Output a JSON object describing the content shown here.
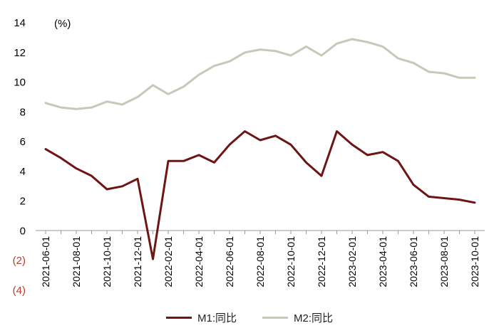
{
  "chart_data": {
    "type": "line",
    "unit_label": "(%)",
    "x": [
      "2021-06-01",
      "2021-07-01",
      "2021-08-01",
      "2021-09-01",
      "2021-10-01",
      "2021-11-01",
      "2021-12-01",
      "2022-01-01",
      "2022-02-01",
      "2022-03-01",
      "2022-04-01",
      "2022-05-01",
      "2022-06-01",
      "2022-07-01",
      "2022-08-01",
      "2022-09-01",
      "2022-10-01",
      "2022-11-01",
      "2022-12-01",
      "2023-01-01",
      "2023-02-01",
      "2023-03-01",
      "2023-04-01",
      "2023-05-01",
      "2023-06-01",
      "2023-07-01",
      "2023-08-01",
      "2023-09-01",
      "2023-10-01"
    ],
    "xtick_labels": [
      "2021-06-01",
      "2021-08-01",
      "2021-10-01",
      "2021-12-01",
      "2022-02-01",
      "2022-04-01",
      "2022-06-01",
      "2022-08-01",
      "2022-10-01",
      "2022-12-01",
      "2023-02-01",
      "2023-04-01",
      "2023-06-01",
      "2023-08-01",
      "2023-10-01"
    ],
    "yticks": [
      {
        "value": 14,
        "label": "14"
      },
      {
        "value": 12,
        "label": "12"
      },
      {
        "value": 10,
        "label": "10"
      },
      {
        "value": 8,
        "label": "8"
      },
      {
        "value": 6,
        "label": "6"
      },
      {
        "value": 4,
        "label": "4"
      },
      {
        "value": 2,
        "label": "2"
      },
      {
        "value": 0,
        "label": "0"
      },
      {
        "value": -2,
        "label": "(2)"
      },
      {
        "value": -4,
        "label": "(4)"
      }
    ],
    "ylim": [
      -4,
      14
    ],
    "negative_tick_color": "#c0392b",
    "grid": false,
    "legend_position": "bottom",
    "series": [
      {
        "name": "M1:同比",
        "color": "#6e1414",
        "values": [
          5.5,
          4.9,
          4.2,
          3.7,
          2.8,
          3.0,
          3.5,
          -1.9,
          4.7,
          4.7,
          5.1,
          4.6,
          5.8,
          6.7,
          6.1,
          6.4,
          5.8,
          4.6,
          3.7,
          6.7,
          5.8,
          5.1,
          5.3,
          4.7,
          3.1,
          2.3,
          2.2,
          2.1,
          1.9
        ]
      },
      {
        "name": "M2:同比",
        "color": "#c5c9b9",
        "values": [
          8.6,
          8.3,
          8.2,
          8.3,
          8.7,
          8.5,
          9.0,
          9.8,
          9.2,
          9.7,
          10.5,
          11.1,
          11.4,
          12.0,
          12.2,
          12.1,
          11.8,
          12.4,
          11.8,
          12.6,
          12.9,
          12.7,
          12.4,
          11.6,
          11.3,
          10.7,
          10.6,
          10.3,
          10.3
        ]
      }
    ]
  }
}
